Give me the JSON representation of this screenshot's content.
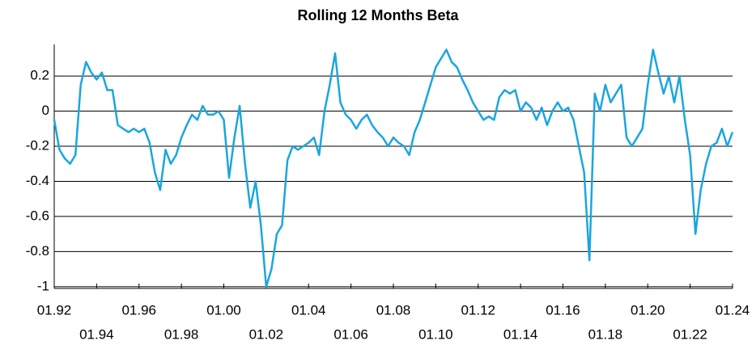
{
  "chart_data": {
    "type": "line",
    "title": "Rolling 12 Months Beta",
    "x": [
      1992,
      1992.25,
      1992.5,
      1992.75,
      1993,
      1993.25,
      1993.5,
      1993.75,
      1994,
      1994.25,
      1994.5,
      1994.75,
      1995,
      1995.25,
      1995.5,
      1995.75,
      1996,
      1996.25,
      1996.5,
      1996.75,
      1997,
      1997.25,
      1997.5,
      1997.75,
      1998,
      1998.25,
      1998.5,
      1998.75,
      1999,
      1999.25,
      1999.5,
      1999.75,
      2000,
      2000.25,
      2000.5,
      2000.75,
      2001,
      2001.25,
      2001.5,
      2001.75,
      2002,
      2002.25,
      2002.5,
      2002.75,
      2003,
      2003.25,
      2003.5,
      2003.75,
      2004,
      2004.25,
      2004.5,
      2004.75,
      2005,
      2005.25,
      2005.5,
      2005.75,
      2006,
      2006.25,
      2006.5,
      2006.75,
      2007,
      2007.25,
      2007.5,
      2007.75,
      2008,
      2008.25,
      2008.5,
      2008.75,
      2009,
      2009.25,
      2009.5,
      2009.75,
      2010,
      2010.25,
      2010.5,
      2010.75,
      2011,
      2011.25,
      2011.5,
      2011.75,
      2012,
      2012.25,
      2012.5,
      2012.75,
      2013,
      2013.25,
      2013.5,
      2013.75,
      2014,
      2014.25,
      2014.5,
      2014.75,
      2015,
      2015.25,
      2015.5,
      2015.75,
      2016,
      2016.25,
      2016.5,
      2016.75,
      2017,
      2017.25,
      2017.5,
      2017.75,
      2018,
      2018.25,
      2018.5,
      2018.75,
      2019,
      2019.25,
      2019.5,
      2019.75,
      2020,
      2020.25,
      2020.5,
      2020.75,
      2021,
      2021.25,
      2021.5,
      2021.75,
      2022,
      2022.25,
      2022.5,
      2022.75,
      2023,
      2023.25,
      2023.5,
      2023.75,
      2024
    ],
    "series": [
      {
        "color": "#1ba6de",
        "values": [
          -0.05,
          -0.22,
          -0.27,
          -0.3,
          -0.25,
          0.15,
          0.28,
          0.22,
          0.18,
          0.22,
          0.12,
          0.12,
          -0.08,
          -0.1,
          -0.12,
          -0.1,
          -0.12,
          -0.1,
          -0.18,
          -0.35,
          -0.45,
          -0.22,
          -0.3,
          -0.25,
          -0.15,
          -0.08,
          -0.02,
          -0.05,
          0.03,
          -0.02,
          -0.02,
          0,
          -0.05,
          -0.38,
          -0.15,
          0.03,
          -0.3,
          -0.55,
          -0.4,
          -0.65,
          -1,
          -0.9,
          -0.7,
          -0.65,
          -0.28,
          -0.2,
          -0.22,
          -0.2,
          -0.18,
          -0.15,
          -0.25,
          0,
          0.15,
          0.33,
          0.05,
          -0.02,
          -0.05,
          -0.1,
          -0.05,
          -0.02,
          -0.08,
          -0.12,
          -0.15,
          -0.2,
          -0.15,
          -0.18,
          -0.2,
          -0.25,
          -0.12,
          -0.05,
          0.05,
          0.15,
          0.25,
          0.3,
          0.35,
          0.28,
          0.25,
          0.18,
          0.12,
          0.05,
          0,
          -0.05,
          -0.03,
          -0.05,
          0.08,
          0.12,
          0.1,
          0.12,
          0,
          0.05,
          0.02,
          -0.05,
          0.02,
          -0.08,
          0,
          0.05,
          0,
          0.02,
          -0.05,
          -0.2,
          -0.35,
          -0.85,
          0.1,
          0,
          0.15,
          0.05,
          0.1,
          0.15,
          -0.15,
          -0.2,
          -0.15,
          -0.1,
          0.15,
          0.35,
          0.22,
          0.1,
          0.2,
          0.05,
          0.2,
          -0.05,
          -0.25,
          -0.7,
          -0.45,
          -0.3,
          -0.2,
          -0.18,
          -0.1,
          -0.2,
          -0.12
        ]
      }
    ],
    "xlim": [
      1992,
      2024
    ],
    "xticks": [
      {
        "value": 1992,
        "label": "01.92"
      },
      {
        "value": 1994,
        "label": "01.94"
      },
      {
        "value": 1996,
        "label": "01.96"
      },
      {
        "value": 1998,
        "label": "01.98"
      },
      {
        "value": 2000,
        "label": "01.00"
      },
      {
        "value": 2002,
        "label": "01.02"
      },
      {
        "value": 2004,
        "label": "01.04"
      },
      {
        "value": 2006,
        "label": "01.06"
      },
      {
        "value": 2008,
        "label": "01.08"
      },
      {
        "value": 2010,
        "label": "01.10"
      },
      {
        "value": 2012,
        "label": "01.12"
      },
      {
        "value": 2014,
        "label": "01.14"
      },
      {
        "value": 2016,
        "label": "01.16"
      },
      {
        "value": 2018,
        "label": "01.18"
      },
      {
        "value": 2020,
        "label": "01.20"
      },
      {
        "value": 2022,
        "label": "01.22"
      },
      {
        "value": 2024,
        "label": "01.24"
      }
    ],
    "ylim": [
      -1.01,
      0.38
    ],
    "yticks": [
      0.2,
      0,
      -0.2,
      -0.4,
      -0.6,
      -0.8,
      -1
    ],
    "grid": true
  }
}
